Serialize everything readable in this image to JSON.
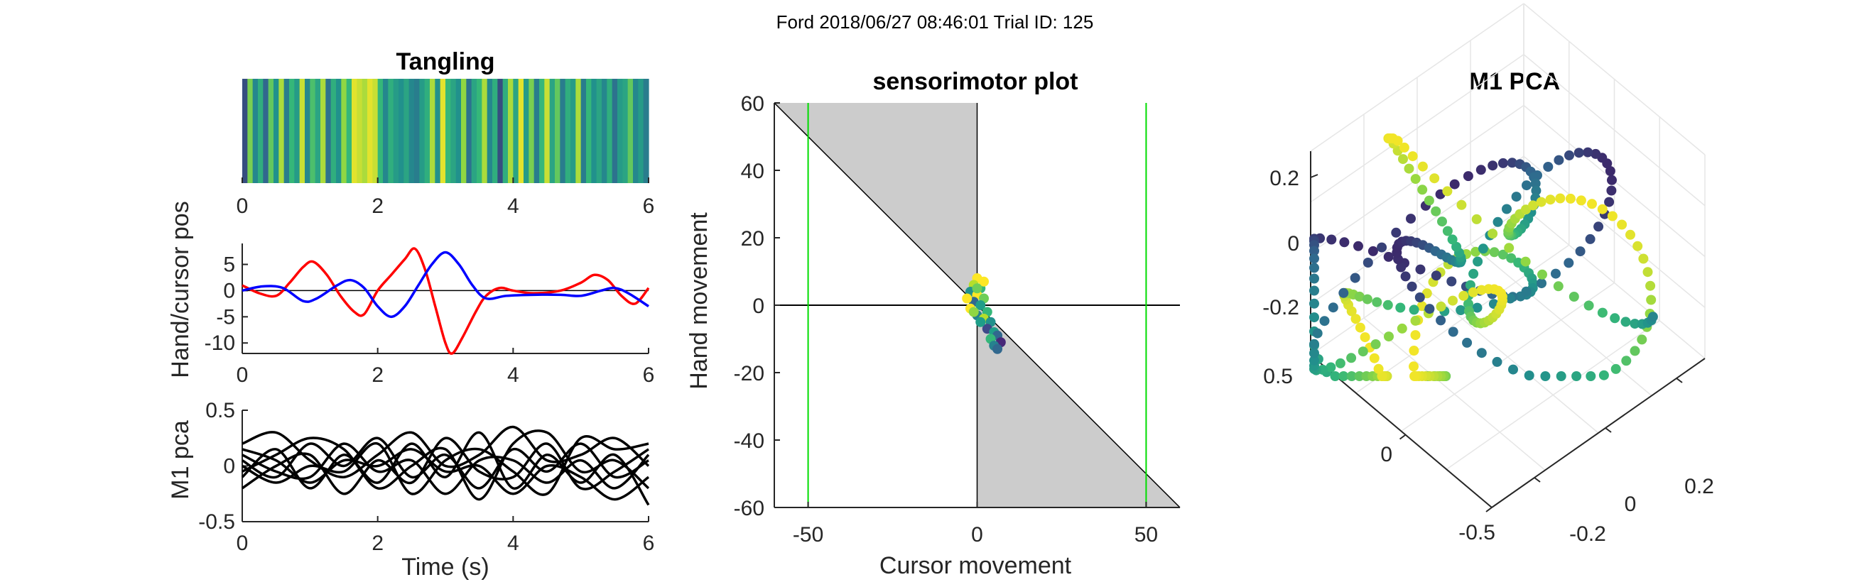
{
  "figure": {
    "suptitle": "Ford 2018/06/27 08:46:01 Trial ID: 125"
  },
  "chart_data": [
    {
      "type": "heatmap",
      "title": "Tangling",
      "xlim": [
        0,
        6
      ],
      "xticks": [
        "0",
        "2",
        "4",
        "6"
      ],
      "colormap": [
        "#440154",
        "#31688e",
        "#21918c",
        "#35b779",
        "#90d743",
        "#fde725"
      ],
      "values": [
        0.15,
        0.75,
        0.35,
        0.55,
        0.2,
        0.7,
        0.4,
        0.85,
        0.3,
        0.6,
        0.45,
        0.9,
        0.35,
        0.65,
        0.5,
        0.85,
        0.25,
        0.55,
        0.4,
        0.8,
        0.6,
        0.95,
        0.9,
        0.85,
        0.95,
        0.9,
        0.6,
        0.35,
        0.55,
        0.45,
        0.4,
        0.5,
        0.35,
        0.3,
        0.45,
        0.55,
        0.85,
        0.4,
        0.95,
        0.6,
        0.5,
        0.4,
        0.8,
        0.25,
        0.5,
        0.6,
        0.85,
        0.35,
        0.55,
        0.15,
        0.55,
        0.85,
        0.5,
        0.95,
        0.45,
        0.75,
        0.3,
        0.6,
        0.9,
        0.5,
        0.7,
        0.3,
        0.55,
        0.45,
        0.85,
        0.3,
        0.6,
        0.4,
        0.5,
        0.35,
        0.55,
        0.25,
        0.45,
        0.5,
        0.7,
        0.35,
        0.45,
        0.3
      ]
    },
    {
      "type": "line",
      "xlim": [
        0,
        6
      ],
      "ylim": [
        -12,
        9
      ],
      "xticks": [
        "0",
        "2",
        "4",
        "6"
      ],
      "yticks": [
        5,
        0,
        -5,
        -10
      ],
      "ylabel": "Hand/cursor pos",
      "zero_line": true,
      "series": [
        {
          "color": "#ff0000",
          "points": [
            [
              0,
              1
            ],
            [
              0.25,
              -0.5
            ],
            [
              0.5,
              -1
            ],
            [
              0.7,
              1.5
            ],
            [
              0.9,
              4.5
            ],
            [
              1.05,
              5.5
            ],
            [
              1.25,
              3
            ],
            [
              1.45,
              -1
            ],
            [
              1.65,
              -4
            ],
            [
              1.8,
              -4.5
            ],
            [
              2.0,
              0
            ],
            [
              2.2,
              3
            ],
            [
              2.4,
              6
            ],
            [
              2.55,
              8
            ],
            [
              2.7,
              4
            ],
            [
              2.85,
              -3
            ],
            [
              3.0,
              -10
            ],
            [
              3.1,
              -12
            ],
            [
              3.25,
              -9
            ],
            [
              3.45,
              -4
            ],
            [
              3.6,
              -1
            ],
            [
              3.8,
              0.5
            ],
            [
              4.0,
              0
            ],
            [
              4.3,
              -0.5
            ],
            [
              4.7,
              0
            ],
            [
              5.0,
              1.5
            ],
            [
              5.2,
              3
            ],
            [
              5.4,
              2
            ],
            [
              5.6,
              -1
            ],
            [
              5.8,
              -2.5
            ],
            [
              6.0,
              0.5
            ]
          ]
        },
        {
          "color": "#0000ff",
          "points": [
            [
              0,
              0
            ],
            [
              0.3,
              0.8
            ],
            [
              0.6,
              0.5
            ],
            [
              0.9,
              -2
            ],
            [
              1.1,
              -1.5
            ],
            [
              1.4,
              1
            ],
            [
              1.6,
              2
            ],
            [
              1.8,
              0.5
            ],
            [
              2.0,
              -3
            ],
            [
              2.2,
              -5
            ],
            [
              2.4,
              -3
            ],
            [
              2.6,
              1
            ],
            [
              2.8,
              5
            ],
            [
              3.0,
              7.3
            ],
            [
              3.2,
              5
            ],
            [
              3.4,
              1
            ],
            [
              3.6,
              -1.5
            ],
            [
              3.9,
              -1
            ],
            [
              4.3,
              -0.8
            ],
            [
              4.7,
              -0.8
            ],
            [
              5.0,
              -1
            ],
            [
              5.3,
              0
            ],
            [
              5.5,
              0.5
            ],
            [
              5.7,
              -0.5
            ],
            [
              6.0,
              -3
            ]
          ]
        }
      ]
    },
    {
      "type": "line",
      "xlim": [
        0,
        6
      ],
      "ylim": [
        -0.5,
        0.5
      ],
      "xticks": [
        "0",
        "2",
        "4",
        "6"
      ],
      "yticks": [
        "0.5",
        "0",
        "-0.5"
      ],
      "xlabel": "Time (s)",
      "ylabel": "M1 pca",
      "series": [
        {
          "color": "#000000",
          "points": [
            [
              0,
              0.05
            ],
            [
              0.5,
              -0.1
            ],
            [
              1,
              0.2
            ],
            [
              1.5,
              0.0
            ],
            [
              2,
              0.25
            ],
            [
              2.5,
              -0.1
            ],
            [
              3,
              0.1
            ],
            [
              3.5,
              -0.2
            ],
            [
              4,
              0.15
            ],
            [
              4.5,
              -0.05
            ],
            [
              5,
              0.2
            ],
            [
              5.5,
              -0.1
            ],
            [
              6,
              0.05
            ]
          ]
        },
        {
          "color": "#000000",
          "points": [
            [
              0,
              -0.1
            ],
            [
              0.5,
              0.15
            ],
            [
              1,
              -0.2
            ],
            [
              1.5,
              0.1
            ],
            [
              2,
              -0.15
            ],
            [
              2.5,
              0.2
            ],
            [
              3,
              -0.1
            ],
            [
              3.5,
              0.3
            ],
            [
              4,
              -0.2
            ],
            [
              4.5,
              0.1
            ],
            [
              5,
              -0.15
            ],
            [
              5.5,
              0.1
            ],
            [
              6,
              -0.35
            ]
          ]
        },
        {
          "color": "#000000",
          "points": [
            [
              0,
              0.2
            ],
            [
              0.5,
              0.3
            ],
            [
              1,
              0.05
            ],
            [
              1.5,
              -0.1
            ],
            [
              2,
              0.1
            ],
            [
              2.5,
              0.3
            ],
            [
              3,
              0.0
            ],
            [
              3.5,
              0.1
            ],
            [
              4,
              0.35
            ],
            [
              4.5,
              0.05
            ],
            [
              5,
              0.1
            ],
            [
              5.5,
              0.25
            ],
            [
              6,
              0.0
            ]
          ]
        },
        {
          "color": "#000000",
          "points": [
            [
              0,
              -0.2
            ],
            [
              0.5,
              0.0
            ],
            [
              1,
              0.1
            ],
            [
              1.5,
              -0.25
            ],
            [
              2,
              0.05
            ],
            [
              2.5,
              -0.15
            ],
            [
              3,
              0.25
            ],
            [
              3.5,
              -0.05
            ],
            [
              4,
              -0.1
            ],
            [
              4.5,
              0.2
            ],
            [
              5,
              -0.2
            ],
            [
              5.5,
              -0.05
            ],
            [
              6,
              0.15
            ]
          ]
        },
        {
          "color": "#000000",
          "points": [
            [
              0,
              0.1
            ],
            [
              0.5,
              -0.05
            ],
            [
              1,
              -0.1
            ],
            [
              1.5,
              0.2
            ],
            [
              2,
              -0.05
            ],
            [
              2.5,
              0.05
            ],
            [
              3,
              -0.25
            ],
            [
              3.5,
              0.05
            ],
            [
              4,
              0.05
            ],
            [
              4.5,
              -0.15
            ],
            [
              5,
              0.05
            ],
            [
              5.5,
              -0.2
            ],
            [
              6,
              0.1
            ]
          ]
        },
        {
          "color": "#000000",
          "points": [
            [
              0,
              -0.05
            ],
            [
              0.5,
              0.1
            ],
            [
              1,
              0.25
            ],
            [
              1.5,
              0.15
            ],
            [
              2,
              -0.2
            ],
            [
              2.5,
              0.0
            ],
            [
              3,
              0.15
            ],
            [
              3.5,
              -0.3
            ],
            [
              4,
              0.2
            ],
            [
              4.5,
              0.3
            ],
            [
              5,
              -0.05
            ],
            [
              5.5,
              0.05
            ],
            [
              6,
              -0.2
            ]
          ]
        },
        {
          "color": "#000000",
          "points": [
            [
              0,
              0.0
            ],
            [
              0.5,
              -0.15
            ],
            [
              1,
              0.0
            ],
            [
              1.5,
              -0.05
            ],
            [
              2,
              0.2
            ],
            [
              2.5,
              -0.25
            ],
            [
              3,
              0.05
            ],
            [
              3.5,
              0.15
            ],
            [
              4,
              -0.05
            ],
            [
              4.5,
              -0.25
            ],
            [
              5,
              0.25
            ],
            [
              5.5,
              0.15
            ],
            [
              6,
              0.2
            ]
          ]
        },
        {
          "color": "#000000",
          "points": [
            [
              0,
              0.15
            ],
            [
              0.5,
              0.05
            ],
            [
              1,
              -0.15
            ],
            [
              1.5,
              0.05
            ],
            [
              2,
              0.0
            ],
            [
              2.5,
              0.15
            ],
            [
              3,
              -0.05
            ],
            [
              3.5,
              0.0
            ],
            [
              4,
              -0.25
            ],
            [
              4.5,
              0.0
            ],
            [
              5,
              -0.1
            ],
            [
              5.5,
              -0.3
            ],
            [
              6,
              -0.1
            ]
          ]
        }
      ]
    },
    {
      "type": "scatter",
      "title": "sensorimotor plot",
      "xlim": [
        -60,
        60
      ],
      "ylim": [
        -60,
        60
      ],
      "xticks": [
        "-50",
        "0",
        "50"
      ],
      "yticks": [
        "60",
        "40",
        "20",
        "0",
        "-20",
        "-40",
        "-60"
      ],
      "xlabel": "Cursor movement",
      "ylabel": "Hand movement",
      "shade_color": "#cccccc",
      "boundary_color": "#00dd00",
      "boundaries_x": [
        -50,
        50
      ],
      "diagonal": "y = -x",
      "points": [
        [
          0,
          8
        ],
        [
          -1,
          6
        ],
        [
          1,
          5
        ],
        [
          -2,
          4
        ],
        [
          0,
          3
        ],
        [
          2,
          2
        ],
        [
          -1,
          1
        ],
        [
          1,
          0
        ],
        [
          -2,
          -1
        ],
        [
          3,
          -2
        ],
        [
          0,
          -3
        ],
        [
          2,
          -4
        ],
        [
          4,
          -5
        ],
        [
          3,
          -7
        ],
        [
          5,
          -8
        ],
        [
          6,
          -9
        ],
        [
          4,
          -10
        ],
        [
          7,
          -11
        ],
        [
          5,
          -12
        ],
        [
          6,
          -13
        ],
        [
          -3,
          2
        ],
        [
          -1,
          -2
        ],
        [
          1,
          -5
        ],
        [
          2,
          7
        ],
        [
          0,
          5
        ]
      ],
      "point_colors": [
        "#fde725",
        "#b5de2b",
        "#35b779",
        "#21918c",
        "#fde725",
        "#6ece58",
        "#31688e",
        "#1f9e89",
        "#fde725",
        "#35b779",
        "#26828e",
        "#b5de2b",
        "#21918c",
        "#3e4989",
        "#1f9e89",
        "#31688e",
        "#35b779",
        "#482878",
        "#26828e",
        "#31688e",
        "#fde725",
        "#90d743",
        "#1f9e89",
        "#fde725",
        "#6ece58"
      ]
    },
    {
      "type": "scatter",
      "title": "M1 PCA",
      "zticks": [
        "0.2",
        "0",
        "-0.2"
      ],
      "yticks": [
        "0.5",
        "0",
        "-0.5"
      ],
      "xticks": [
        "-0.2",
        "0",
        "0.2"
      ],
      "colormap": "viridis",
      "grid": true
    }
  ]
}
